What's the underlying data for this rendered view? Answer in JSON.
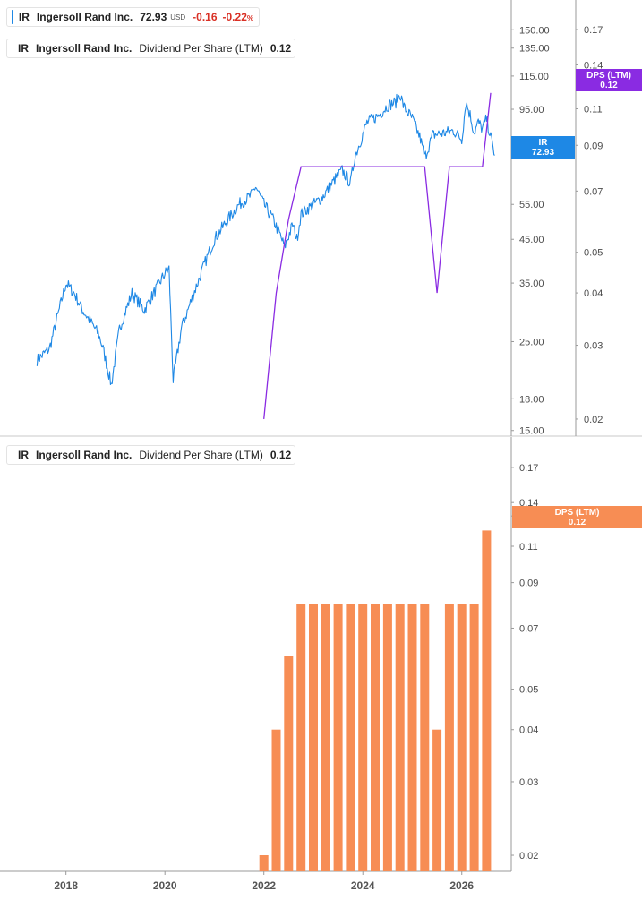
{
  "colors": {
    "price": "#1e88e5",
    "dps_line": "#8a2be2",
    "dps_bar": "#f78d54",
    "negative": "#d93025",
    "axis": "#9a9a9a"
  },
  "legends": {
    "price": {
      "symbol": "IR",
      "name": "Ingersoll Rand Inc.",
      "value": "72.93",
      "currency": "USD",
      "change": "-0.16",
      "change_pct": "-0.22",
      "pct_sign": "%"
    },
    "dps_top": {
      "symbol": "IR",
      "name": "Ingersoll Rand Inc.",
      "metric": "Dividend Per Share (LTM)",
      "value": "0.12"
    },
    "dps_bottom": {
      "symbol": "IR",
      "name": "Ingersoll Rand Inc.",
      "metric": "Dividend Per Share (LTM)",
      "value": "0.12"
    }
  },
  "tags": {
    "price": {
      "label": "IR",
      "value": "72.93"
    },
    "dps_top": {
      "label": "DPS (LTM)",
      "value": "0.12"
    },
    "dps_bottom": {
      "label": "DPS (LTM)",
      "value": "0.12"
    }
  },
  "chart_data": [
    {
      "type": "line",
      "scale": "log",
      "series": [
        {
          "name": "IR",
          "axis": "left",
          "points": [
            [
              "2017-06",
              22.5
            ],
            [
              "2017-09",
              24
            ],
            [
              "2017-11",
              29
            ],
            [
              "2018-01",
              35
            ],
            [
              "2018-03",
              33
            ],
            [
              "2018-05",
              30
            ],
            [
              "2018-07",
              28
            ],
            [
              "2018-09",
              26
            ],
            [
              "2018-10",
              24
            ],
            [
              "2018-12",
              19.5
            ],
            [
              "2019-02",
              27
            ],
            [
              "2019-05",
              33
            ],
            [
              "2019-08",
              30
            ],
            [
              "2019-11",
              34
            ],
            [
              "2020-01",
              37
            ],
            [
              "2020-02",
              38
            ],
            [
              "2020-03",
              20
            ],
            [
              "2020-05",
              27
            ],
            [
              "2020-08",
              33
            ],
            [
              "2020-11",
              40
            ],
            [
              "2021-01",
              45
            ],
            [
              "2021-04",
              50
            ],
            [
              "2021-07",
              55
            ],
            [
              "2021-10",
              58
            ],
            [
              "2021-11",
              61
            ],
            [
              "2022-01",
              55
            ],
            [
              "2022-03",
              51
            ],
            [
              "2022-05",
              46
            ],
            [
              "2022-06",
              43
            ],
            [
              "2022-08",
              49
            ],
            [
              "2022-09",
              45
            ],
            [
              "2022-10",
              52
            ],
            [
              "2022-12",
              54
            ],
            [
              "2023-03",
              57
            ],
            [
              "2023-06",
              63
            ],
            [
              "2023-08",
              67
            ],
            [
              "2023-10",
              62
            ],
            [
              "2023-11",
              72
            ],
            [
              "2024-02",
              88
            ],
            [
              "2024-05",
              92
            ],
            [
              "2024-07",
              97
            ],
            [
              "2024-09",
              99
            ],
            [
              "2024-10",
              104
            ],
            [
              "2024-11",
              96
            ],
            [
              "2025-01",
              90
            ],
            [
              "2025-03",
              80
            ],
            [
              "2025-04",
              72
            ],
            [
              "2025-06",
              82
            ],
            [
              "2025-09",
              83
            ],
            [
              "2025-11",
              84
            ],
            [
              "2026-01",
              80
            ],
            [
              "2026-02",
              99
            ],
            [
              "2026-03",
              92
            ],
            [
              "2026-04",
              83
            ],
            [
              "2026-05",
              88
            ],
            [
              "2026-06",
              85
            ],
            [
              "2026-07",
              90
            ],
            [
              "2026-09",
              72.93
            ]
          ]
        },
        {
          "name": "DPS (LTM)",
          "axis": "right",
          "points": [
            [
              "2022-01",
              0.02
            ],
            [
              "2022-04",
              0.04
            ],
            [
              "2022-07",
              0.06
            ],
            [
              "2022-10",
              0.08
            ],
            [
              "2025-04",
              0.08
            ],
            [
              "2025-07",
              0.04
            ],
            [
              "2025-10",
              0.08
            ],
            [
              "2026-06",
              0.08
            ],
            [
              "2026-08",
              0.12
            ]
          ]
        }
      ],
      "left_axis": {
        "ticks": [
          15.0,
          18.0,
          25.0,
          35.0,
          45.0,
          55.0,
          95.0,
          115.0,
          135.0,
          150.0
        ],
        "tick_labels": [
          "15.00",
          "18.00",
          "25.00",
          "35.00",
          "45.00",
          "55.00",
          "95.00",
          "115.00",
          "135.00",
          "150.00"
        ],
        "range": [
          14.6,
          178
        ]
      },
      "right_axis": {
        "ticks": [
          0.02,
          0.03,
          0.04,
          0.05,
          0.07,
          0.09,
          0.11,
          0.13,
          0.14,
          0.17
        ],
        "tick_labels": [
          "0.02",
          "0.03",
          "0.04",
          "0.05",
          "0.07",
          "0.09",
          "0.11",
          "0.13",
          "0.14",
          "0.17"
        ],
        "range": [
          0.0183,
          0.2
        ]
      }
    },
    {
      "type": "bar",
      "scale": "log",
      "series": [
        {
          "name": "DPS (LTM)",
          "points": [
            [
              "2022-01",
              0.02
            ],
            [
              "2022-04",
              0.04
            ],
            [
              "2022-07",
              0.06
            ],
            [
              "2022-10",
              0.08
            ],
            [
              "2023-01",
              0.08
            ],
            [
              "2023-04",
              0.08
            ],
            [
              "2023-07",
              0.08
            ],
            [
              "2023-10",
              0.08
            ],
            [
              "2024-01",
              0.08
            ],
            [
              "2024-04",
              0.08
            ],
            [
              "2024-07",
              0.08
            ],
            [
              "2024-10",
              0.08
            ],
            [
              "2025-01",
              0.08
            ],
            [
              "2025-04",
              0.08
            ],
            [
              "2025-07",
              0.04
            ],
            [
              "2025-10",
              0.08
            ],
            [
              "2026-01",
              0.08
            ],
            [
              "2026-04",
              0.08
            ],
            [
              "2026-07",
              0.12
            ]
          ]
        }
      ],
      "y_axis": {
        "ticks": [
          0.02,
          0.03,
          0.04,
          0.05,
          0.07,
          0.09,
          0.11,
          0.13,
          0.14,
          0.17
        ],
        "tick_labels": [
          "0.02",
          "0.03",
          "0.04",
          "0.05",
          "0.07",
          "0.09",
          "0.11",
          "0.13",
          "0.14",
          "0.17"
        ],
        "range": [
          0.0183,
          0.2
        ]
      },
      "x_axis": {
        "ticks": [
          "2018",
          "2020",
          "2022",
          "2024",
          "2026"
        ],
        "range": [
          "2016-09",
          "2027-01"
        ]
      }
    }
  ]
}
